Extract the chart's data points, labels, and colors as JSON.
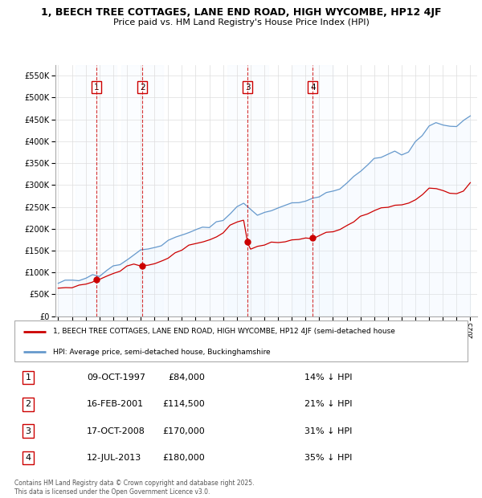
{
  "title_line1": "1, BEECH TREE COTTAGES, LANE END ROAD, HIGH WYCOMBE, HP12 4JF",
  "title_line2": "Price paid vs. HM Land Registry's House Price Index (HPI)",
  "ytick_values": [
    0,
    50000,
    100000,
    150000,
    200000,
    250000,
    300000,
    350000,
    400000,
    450000,
    500000,
    550000
  ],
  "ylim": [
    0,
    575000
  ],
  "sale_dates_num": [
    1997.77,
    2001.12,
    2008.79,
    2013.53
  ],
  "sale_prices": [
    84000,
    114500,
    170000,
    180000
  ],
  "sale_labels": [
    "1",
    "2",
    "3",
    "4"
  ],
  "sale_color": "#cc0000",
  "hpi_color": "#6699cc",
  "hpi_fill_color": "#ddeeff",
  "legend_label_red": "1, BEECH TREE COTTAGES, LANE END ROAD, HIGH WYCOMBE, HP12 4JF (semi-detached house",
  "legend_label_blue": "HPI: Average price, semi-detached house, Buckinghamshire",
  "table_data": [
    {
      "num": "1",
      "date": "09-OCT-1997",
      "price": "£84,000",
      "hpi": "14% ↓ HPI"
    },
    {
      "num": "2",
      "date": "16-FEB-2001",
      "price": "£114,500",
      "hpi": "21% ↓ HPI"
    },
    {
      "num": "3",
      "date": "17-OCT-2008",
      "price": "£170,000",
      "hpi": "31% ↓ HPI"
    },
    {
      "num": "4",
      "date": "12-JUL-2013",
      "price": "£180,000",
      "hpi": "35% ↓ HPI"
    }
  ],
  "footnote": "Contains HM Land Registry data © Crown copyright and database right 2025.\nThis data is licensed under the Open Government Licence v3.0.",
  "xmin": 1994.8,
  "xmax": 2025.5,
  "hpi_years": [
    1995.0,
    1995.5,
    1996.0,
    1996.5,
    1997.0,
    1997.5,
    1998.0,
    1998.5,
    1999.0,
    1999.5,
    2000.0,
    2000.5,
    2001.0,
    2001.5,
    2002.0,
    2002.5,
    2003.0,
    2003.5,
    2004.0,
    2004.5,
    2005.0,
    2005.5,
    2006.0,
    2006.5,
    2007.0,
    2007.5,
    2008.0,
    2008.5,
    2009.0,
    2009.5,
    2010.0,
    2010.5,
    2011.0,
    2011.5,
    2012.0,
    2012.5,
    2013.0,
    2013.5,
    2014.0,
    2014.5,
    2015.0,
    2015.5,
    2016.0,
    2016.5,
    2017.0,
    2017.5,
    2018.0,
    2018.5,
    2019.0,
    2019.5,
    2020.0,
    2020.5,
    2021.0,
    2021.5,
    2022.0,
    2022.5,
    2023.0,
    2023.5,
    2024.0,
    2024.5,
    2025.0
  ],
  "hpi_prices": [
    78000,
    80000,
    82000,
    85000,
    88000,
    91000,
    97000,
    105000,
    112000,
    120000,
    130000,
    140000,
    148000,
    155000,
    158000,
    162000,
    168000,
    175000,
    183000,
    190000,
    196000,
    200000,
    205000,
    213000,
    222000,
    235000,
    248000,
    262000,
    245000,
    233000,
    238000,
    248000,
    252000,
    255000,
    257000,
    260000,
    263000,
    268000,
    275000,
    282000,
    288000,
    295000,
    305000,
    318000,
    330000,
    345000,
    355000,
    362000,
    368000,
    372000,
    372000,
    378000,
    395000,
    415000,
    435000,
    440000,
    435000,
    430000,
    430000,
    445000,
    460000
  ],
  "red_years": [
    1995.0,
    1995.5,
    1996.0,
    1996.5,
    1997.0,
    1997.5,
    1997.77,
    1998.0,
    1998.5,
    1999.0,
    1999.5,
    2000.0,
    2000.5,
    2001.0,
    2001.12,
    2001.5,
    2002.0,
    2002.5,
    2003.0,
    2003.5,
    2004.0,
    2004.5,
    2005.0,
    2005.5,
    2006.0,
    2006.5,
    2007.0,
    2007.5,
    2008.0,
    2008.5,
    2008.79,
    2009.0,
    2009.5,
    2010.0,
    2010.5,
    2011.0,
    2011.5,
    2012.0,
    2012.5,
    2013.0,
    2013.53,
    2014.0,
    2014.5,
    2015.0,
    2015.5,
    2016.0,
    2016.5,
    2017.0,
    2017.5,
    2018.0,
    2018.5,
    2019.0,
    2019.5,
    2020.0,
    2020.5,
    2021.0,
    2021.5,
    2022.0,
    2022.5,
    2023.0,
    2023.5,
    2024.0,
    2024.5,
    2025.0
  ],
  "red_prices": [
    63000,
    65000,
    67000,
    69000,
    72000,
    78000,
    84000,
    86000,
    91000,
    97000,
    104000,
    113000,
    121000,
    118000,
    114500,
    117000,
    120000,
    127000,
    135000,
    143000,
    152000,
    160000,
    165000,
    170000,
    176000,
    182000,
    192000,
    205000,
    215000,
    218000,
    170000,
    153000,
    158000,
    163000,
    168000,
    170000,
    172000,
    174000,
    176000,
    178000,
    180000,
    183000,
    188000,
    193000,
    198000,
    207000,
    218000,
    228000,
    236000,
    242000,
    246000,
    250000,
    253000,
    253000,
    258000,
    268000,
    278000,
    290000,
    295000,
    288000,
    282000,
    280000,
    285000,
    303000
  ]
}
